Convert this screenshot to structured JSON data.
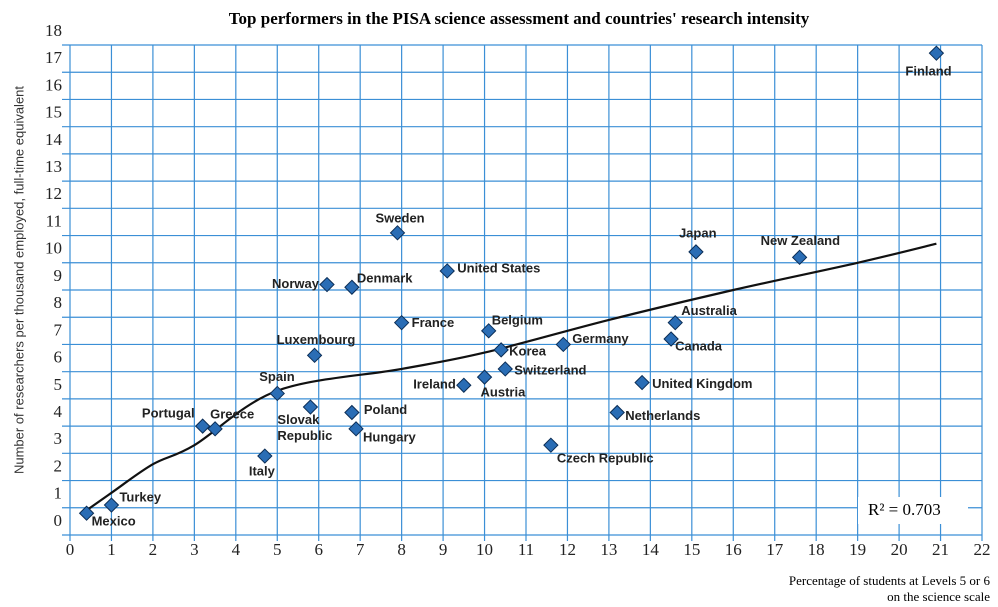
{
  "chart_data": {
    "type": "scatter",
    "title": "Top performers in the PISA science assessment and countries' research intensity",
    "y_label": "Number of researchers per thousand employed, full-time equivalent",
    "x_label": [
      "Percentage of students at Levels  5 or 6",
      "on the science scale"
    ],
    "annotation": "R² = 0.703",
    "xlim": [
      0,
      22
    ],
    "xticks": [
      0,
      1,
      2,
      3,
      4,
      5,
      6,
      7,
      8,
      9,
      10,
      11,
      12,
      13,
      14,
      15,
      16,
      17,
      18,
      19,
      20,
      21,
      22
    ],
    "ylim": [
      0,
      18
    ],
    "yticks": [
      0,
      1,
      2,
      3,
      4,
      5,
      6,
      7,
      8,
      9,
      10,
      11,
      12,
      13,
      14,
      15,
      16,
      17,
      18
    ],
    "grid": true,
    "marker_color": "#2a6db5",
    "grid_color": "#3b8fd6",
    "trend_color": "#111111",
    "series": [
      {
        "labels": [
          "Mexico",
          "Turkey",
          "Portugal",
          "Greece",
          "Italy",
          "Spain",
          "Slovak Republic",
          "Luxembourg",
          "Norway",
          "Denmark",
          "Poland",
          "Hungary",
          "Sweden",
          "France",
          "United States",
          "Ireland",
          "Austria",
          "Belgium",
          "Korea",
          "Switzerland",
          "Czech Republic",
          "Germany",
          "Netherlands",
          "United Kingdom",
          "Canada",
          "Australia",
          "Japan",
          "New Zealand",
          "Finland"
        ],
        "x": [
          0.4,
          1.0,
          3.2,
          3.5,
          4.7,
          5.0,
          5.8,
          5.9,
          6.2,
          6.8,
          6.8,
          6.9,
          7.9,
          8.0,
          9.1,
          9.5,
          10.0,
          10.1,
          10.4,
          10.5,
          11.6,
          11.9,
          13.2,
          13.8,
          14.5,
          14.6,
          15.1,
          17.6,
          20.9
        ],
        "values": [
          0.8,
          1.1,
          4.0,
          3.9,
          2.9,
          5.2,
          4.7,
          6.6,
          9.2,
          9.1,
          4.5,
          3.9,
          11.1,
          7.8,
          9.7,
          5.5,
          5.8,
          7.5,
          6.8,
          6.1,
          3.3,
          7.0,
          4.5,
          5.6,
          7.2,
          7.8,
          10.4,
          10.2,
          17.7
        ]
      }
    ],
    "trendline": {
      "x": [
        0.3,
        1,
        2,
        3,
        5,
        8,
        10,
        13,
        16,
        19,
        20.9
      ],
      "values": [
        0.8,
        1.55,
        2.6,
        3.3,
        5.3,
        6.1,
        6.7,
        7.9,
        9.0,
        10.0,
        10.7
      ]
    }
  }
}
